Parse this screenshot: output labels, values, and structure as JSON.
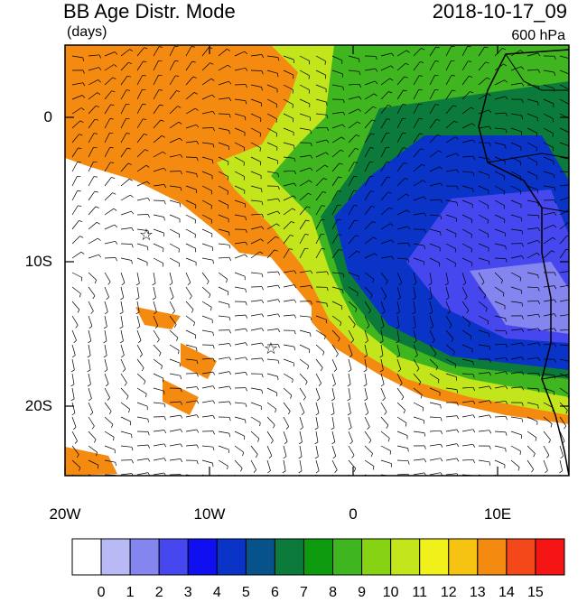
{
  "header": {
    "title": "BB Age Distr. Mode",
    "units": "(days)",
    "datetime": "2018-10-17_09",
    "level": "600 hPa"
  },
  "axes": {
    "lat_labels": [
      "0",
      "10S",
      "20S"
    ],
    "lon_labels": [
      "20W",
      "10W",
      "0",
      "10E"
    ]
  },
  "colorbar": {
    "labels": [
      "0",
      "1",
      "2",
      "3",
      "4",
      "5",
      "6",
      "7",
      "8",
      "9",
      "10",
      "11",
      "12",
      "13",
      "14",
      "15"
    ],
    "colors": [
      "#ffffff",
      "#b9b9f6",
      "#8585f0",
      "#4747f0",
      "#0f0ff0",
      "#0a34c8",
      "#07528a",
      "#0b7a3a",
      "#0e9a0e",
      "#3fb51f",
      "#86d313",
      "#c2e51c",
      "#f0f01b",
      "#f6c312",
      "#f48a10",
      "#f5481a",
      "#f51414"
    ]
  },
  "map": {
    "markers": [
      "star",
      "star"
    ]
  }
}
